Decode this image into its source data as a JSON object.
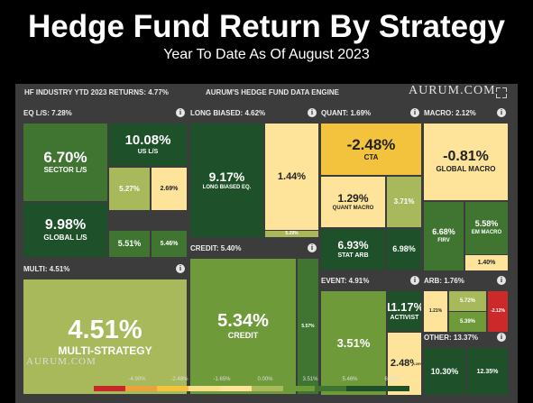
{
  "header": {
    "title": "Hedge Fund Return By Strategy",
    "subtitle": "Year To Date As Of August 2023"
  },
  "panel": {
    "industry_returns": "HF INDUSTRY YTD 2023 RETURNS: 4.77%",
    "engine": "AURUM'S HEDGE FUND DATA ENGINE",
    "brand": "AURUM.COM",
    "footer_brand": "AURUM.COM"
  },
  "colors": {
    "dark_green": "#1e5129",
    "green": "#3f7530",
    "olive": "#6f9a3a",
    "light_olive": "#a7b95b",
    "pale_yellow": "#fde49a",
    "yellow": "#f3c33d",
    "red": "#cc2a2a"
  },
  "chart_data": {
    "type": "treemap",
    "title": "Hedge Fund Return By Strategy",
    "subtitle": "Year To Date As Of August 2023",
    "industry_ytd_return": "4.77%",
    "groups": [
      {
        "name": "EQ L/S",
        "label": "EQ L/S: 7.28%",
        "return": 7.28,
        "children": [
          {
            "name": "SECTOR L/S",
            "value": "6.70%"
          },
          {
            "name": "US L/S",
            "value": "10.08%"
          },
          {
            "name": "",
            "value": "5.27%"
          },
          {
            "name": "",
            "value": "2.69%"
          },
          {
            "name": "GLOBAL L/S",
            "value": "9.98%"
          },
          {
            "name": "",
            "value": "5.51%"
          },
          {
            "name": "",
            "value": "5.46%"
          }
        ]
      },
      {
        "name": "LONG BIASED",
        "label": "LONG BIASED: 4.62%",
        "return": 4.62,
        "children": [
          {
            "name": "LONG BIASED EQ.",
            "value": "9.17%"
          },
          {
            "name": "",
            "value": "1.44%"
          },
          {
            "name": "",
            "value": "5.29%"
          }
        ]
      },
      {
        "name": "QUANT",
        "label": "QUANT: 1.69%",
        "return": 1.69,
        "children": [
          {
            "name": "CTA",
            "value": "-2.48%"
          },
          {
            "name": "QUANT MACRO",
            "value": "1.29%"
          },
          {
            "name": "",
            "value": "3.71%"
          },
          {
            "name": "STAT ARB",
            "value": "6.93%"
          },
          {
            "name": "",
            "value": "6.98%"
          }
        ]
      },
      {
        "name": "MACRO",
        "label": "MACRO: 2.12%",
        "return": 2.12,
        "children": [
          {
            "name": "GLOBAL MACRO",
            "value": "-0.81%"
          },
          {
            "name": "FIRV",
            "value": "6.68%"
          },
          {
            "name": "EM MACRO",
            "value": "5.58%"
          },
          {
            "name": "",
            "value": "1.40%"
          }
        ]
      },
      {
        "name": "MULTI",
        "label": "MULTI: 4.51%",
        "return": 4.51,
        "children": [
          {
            "name": "MULTI-STRATEGY",
            "value": "4.51%"
          }
        ]
      },
      {
        "name": "CREDIT",
        "label": "CREDIT: 5.40%",
        "return": 5.4,
        "children": [
          {
            "name": "CREDIT",
            "value": "5.34%"
          },
          {
            "name": "",
            "value": "5.57%"
          }
        ]
      },
      {
        "name": "EVENT",
        "label": "EVENT: 4.91%",
        "return": 4.91,
        "children": [
          {
            "name": "",
            "value": "3.51%"
          },
          {
            "name": "ACTIVIST",
            "value": "11.17%"
          },
          {
            "name": "",
            "value": "2.48%"
          },
          {
            "name": "",
            "value": "3.20%"
          }
        ]
      },
      {
        "name": "ARB",
        "label": "ARB: 1.76%",
        "return": 1.76,
        "children": [
          {
            "name": "",
            "value": "1.21%"
          },
          {
            "name": "",
            "value": "5.72%"
          },
          {
            "name": "",
            "value": "5.39%"
          },
          {
            "name": "",
            "value": "-2.12%"
          }
        ]
      },
      {
        "name": "OTHER",
        "label": "OTHER: 13.37%",
        "return": 13.37,
        "children": [
          {
            "name": "",
            "value": "10.30%"
          },
          {
            "name": "",
            "value": "12.35%"
          }
        ]
      }
    ],
    "scale": {
      "labels": [
        "-4.90%",
        "-2.48%",
        "-1.65%",
        "0.00%",
        "3.51%",
        "5.46%",
        "6.93%"
      ],
      "colors": [
        "#c62828",
        "#e8a33a",
        "#f3c33d",
        "#f8df8a",
        "#fde49a",
        "#a7b95b",
        "#6f9a3a",
        "#3f7530",
        "#1e5129",
        "#1e5129"
      ]
    }
  }
}
